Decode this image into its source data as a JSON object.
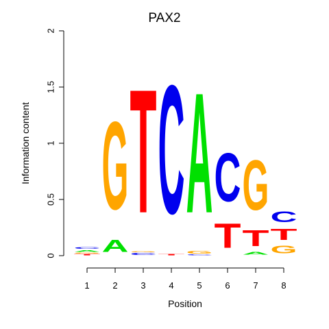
{
  "chart_data": {
    "type": "sequence-logo",
    "title": "PAX2",
    "xlabel": "Position",
    "ylabel": "Information content",
    "ylim": [
      0,
      2
    ],
    "y_ticks": [
      "0",
      "0.5",
      "1",
      "1.5",
      "2"
    ],
    "positions": [
      "1",
      "2",
      "3",
      "4",
      "5",
      "6",
      "7",
      "8"
    ],
    "colors": {
      "A": "#00e000",
      "C": "#0000ee",
      "G": "#ffa500",
      "T": "#ff0000"
    },
    "stacks": [
      [
        {
          "base": "T",
          "height": 0.015
        },
        {
          "base": "G",
          "height": 0.015
        },
        {
          "base": "A",
          "height": 0.025
        },
        {
          "base": "C",
          "height": 0.025
        }
      ],
      [
        {
          "base": "A",
          "height": 0.17
        },
        {
          "base": "G",
          "height": 1.25
        }
      ],
      [
        {
          "base": "C",
          "height": 0.03
        },
        {
          "base": "G",
          "height": 0.01
        },
        {
          "base": "T",
          "height": 1.76
        }
      ],
      [
        {
          "base": "T",
          "height": 0.02
        },
        {
          "base": "C",
          "height": 1.83
        }
      ],
      [
        {
          "base": "C",
          "height": 0.01
        },
        {
          "base": "G",
          "height": 0.04
        },
        {
          "base": "A",
          "height": 1.71
        }
      ],
      [
        {
          "base": "T",
          "height": 0.35
        },
        {
          "base": "C",
          "height": 0.69
        }
      ],
      [
        {
          "base": "A",
          "height": 0.04
        },
        {
          "base": "T",
          "height": 0.23
        },
        {
          "base": "G",
          "height": 0.71
        }
      ],
      [
        {
          "base": "G",
          "height": 0.11
        },
        {
          "base": "T",
          "height": 0.16
        },
        {
          "base": "C",
          "height": 0.15
        }
      ]
    ]
  }
}
